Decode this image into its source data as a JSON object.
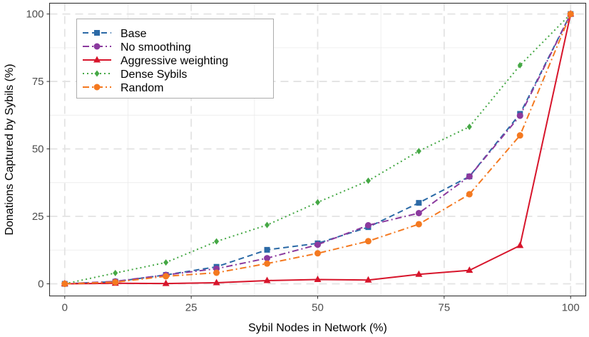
{
  "chart_data": {
    "type": "line",
    "title": "",
    "xlabel": "Sybil Nodes in Network (%)",
    "ylabel": "Donations Captured by Sybils (%)",
    "xlim": [
      -3,
      103
    ],
    "ylim": [
      -4.5,
      104
    ],
    "x_ticks": [
      0,
      25,
      50,
      75,
      100
    ],
    "y_ticks": [
      0,
      25,
      50,
      75,
      100
    ],
    "grid": true,
    "legend_position": "top-left",
    "series": [
      {
        "name": "Base",
        "color": "#2c6aa6",
        "dash": "dashed",
        "marker": "square",
        "x": [
          0,
          10,
          20,
          30,
          40,
          50,
          60,
          70,
          80,
          90,
          100
        ],
        "y": [
          0,
          0.8,
          3.3,
          6.3,
          12.6,
          15.0,
          21.0,
          30.0,
          39.8,
          63.0,
          100
        ]
      },
      {
        "name": "No smoothing",
        "color": "#8b3a9e",
        "dash": "dashdot",
        "marker": "circle",
        "x": [
          0,
          10,
          20,
          30,
          40,
          50,
          60,
          70,
          80,
          90,
          100
        ],
        "y": [
          0,
          0.9,
          3.3,
          5.6,
          9.5,
          14.5,
          21.7,
          26.2,
          39.8,
          62.3,
          100
        ]
      },
      {
        "name": "Aggressive weighting",
        "color": "#d7152b",
        "dash": "solid",
        "marker": "triangle",
        "x": [
          0,
          10,
          20,
          30,
          40,
          50,
          60,
          70,
          80,
          90,
          100
        ],
        "y": [
          0,
          0.2,
          0.1,
          0.4,
          1.2,
          1.6,
          1.4,
          3.5,
          5.0,
          14.2,
          100
        ]
      },
      {
        "name": "Dense Sybils",
        "color": "#45a845",
        "dash": "dotted",
        "marker": "diamond",
        "x": [
          0,
          10,
          20,
          30,
          40,
          50,
          60,
          70,
          80,
          90,
          100
        ],
        "y": [
          0,
          4.0,
          7.9,
          15.7,
          21.8,
          30.2,
          38.2,
          49.2,
          58.2,
          81.0,
          100
        ]
      },
      {
        "name": "Random",
        "color": "#f47920",
        "dash": "dashdot",
        "marker": "circle",
        "x": [
          0,
          10,
          20,
          30,
          40,
          50,
          60,
          70,
          80,
          90,
          100
        ],
        "y": [
          0,
          0.6,
          2.8,
          4.1,
          7.5,
          11.3,
          15.8,
          22.1,
          33.2,
          55.0,
          100
        ]
      }
    ]
  }
}
